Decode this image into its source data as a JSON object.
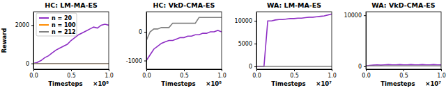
{
  "chart_data": [
    {
      "type": "line",
      "title": "HC: LM-MA-ES",
      "xlabel": "Timesteps",
      "annotations": [
        "×10⁸"
      ],
      "ylabel": "Reward",
      "legend": "upper left",
      "x": [
        0,
        0.05,
        0.1,
        0.15,
        0.2,
        0.25,
        0.3,
        0.35,
        0.4,
        0.45,
        0.5,
        0.55,
        0.6,
        0.65,
        0.7,
        0.75,
        0.8,
        0.85,
        0.9,
        0.95,
        1
      ],
      "xlim": [
        0,
        1
      ],
      "xticks": [
        {
          "value": 0,
          "label": "0.0"
        },
        0.5,
        {
          "value": 1,
          "label": "1.0"
        }
      ],
      "ylim": [
        -300,
        2700
      ],
      "yticks": [
        0,
        2000
      ],
      "series": [
        {
          "name": "n = 20",
          "color": "#8e2ec4",
          "values": [
            0,
            50,
            150,
            300,
            400,
            550,
            700,
            800,
            900,
            1000,
            1200,
            1350,
            1500,
            1600,
            1700,
            1800,
            1900,
            1850,
            2000,
            2050,
            2000
          ]
        },
        {
          "name": "n = 100",
          "color": "#ff8c00",
          "values": [
            0,
            0,
            0,
            0,
            0,
            0,
            0,
            0,
            0,
            0,
            0,
            0,
            0,
            0,
            0,
            0,
            0,
            0,
            0,
            0,
            0
          ]
        },
        {
          "name": "n = 212",
          "color": "#808080",
          "values": [
            0,
            0,
            0,
            0,
            0,
            0,
            0,
            0,
            0,
            0,
            0,
            0,
            0,
            0,
            0,
            0,
            0,
            0,
            0,
            0,
            0
          ]
        }
      ]
    },
    {
      "type": "line",
      "title": "HC: VkD-CMA-ES",
      "xlabel": "Timesteps",
      "annotations": [
        "×10⁸"
      ],
      "x": [
        0,
        0.05,
        0.1,
        0.15,
        0.2,
        0.25,
        0.3,
        0.35,
        0.4,
        0.45,
        0.5,
        0.55,
        0.6,
        0.65,
        0.7,
        0.75,
        0.8,
        0.85,
        0.9,
        0.95,
        1
      ],
      "xlim": [
        0,
        1
      ],
      "xticks": [
        {
          "value": 0,
          "label": "0.0"
        },
        0.5,
        {
          "value": 1,
          "label": "1.0"
        }
      ],
      "ylim": [
        -1300,
        700
      ],
      "yticks": [
        -1000,
        0
      ],
      "series": [
        {
          "name": "n = 20",
          "color": "#8e2ec4",
          "values": [
            -1000,
            -800,
            -600,
            -500,
            -400,
            -350,
            -300,
            -300,
            -250,
            -200,
            -200,
            -150,
            -150,
            -100,
            -100,
            -50,
            -50,
            0,
            0,
            50,
            0
          ]
        },
        {
          "name": "n = 212",
          "color": "#808080",
          "values": [
            -300,
            0,
            100,
            100,
            150,
            150,
            150,
            300,
            300,
            300,
            300,
            300,
            300,
            300,
            500,
            500,
            500,
            500,
            500,
            500,
            500
          ]
        }
      ]
    },
    {
      "type": "line",
      "title": "WA: LM-MA-ES",
      "xlabel": "Timesteps",
      "annotations": [
        "×10⁷"
      ],
      "x": [
        0,
        0.05,
        0.1,
        0.15,
        0.2,
        0.25,
        0.3,
        0.35,
        0.4,
        0.45,
        0.5,
        0.55,
        0.6,
        0.65,
        0.7,
        0.75,
        0.8,
        0.85,
        0.9,
        0.95,
        1
      ],
      "xlim": [
        0,
        1
      ],
      "xticks": [
        {
          "value": 0,
          "label": "0.0"
        },
        0.5,
        {
          "value": 1,
          "label": "1.0"
        }
      ],
      "ylim": [
        -600,
        12000
      ],
      "yticks": [
        0,
        5000,
        10000
      ],
      "series": [
        {
          "name": "n = 20",
          "color": "#8e2ec4",
          "values": [
            0,
            0,
            0,
            10000,
            10000,
            10200,
            10300,
            10300,
            10400,
            10500,
            10500,
            10600,
            10600,
            10700,
            10800,
            10800,
            10900,
            11000,
            11100,
            11300,
            11500
          ]
        },
        {
          "name": "n = 212",
          "color": "#808080",
          "values": [
            0,
            0,
            0,
            0,
            0,
            0,
            0,
            0,
            0,
            0,
            0,
            0,
            0,
            0,
            0,
            0,
            0,
            0,
            0,
            0,
            0
          ]
        }
      ]
    },
    {
      "type": "line",
      "title": "WA: VkD-CMA-ES",
      "xlabel": "Timesteps",
      "annotations": [
        "×10⁷"
      ],
      "x": [
        0,
        0.05,
        0.1,
        0.15,
        0.2,
        0.25,
        0.3,
        0.35,
        0.4,
        0.45,
        0.5,
        0.55,
        0.6,
        0.65,
        0.7,
        0.75,
        0.8,
        0.85,
        0.9,
        0.95,
        1
      ],
      "xlim": [
        0,
        1
      ],
      "xticks": [
        {
          "value": 0,
          "label": "0.0"
        },
        0.5,
        {
          "value": 1,
          "label": "1.0"
        }
      ],
      "ylim": [
        -550,
        10700
      ],
      "yticks": [
        0,
        10000
      ],
      "series": [
        {
          "name": "n = 20",
          "color": "#8e2ec4",
          "values": [
            100,
            200,
            250,
            300,
            250,
            300,
            350,
            300,
            300,
            350,
            300,
            300,
            350,
            300,
            300,
            350,
            300,
            300,
            350,
            300,
            300
          ]
        },
        {
          "name": "n = 212",
          "color": "#808080",
          "values": [
            50,
            100,
            100,
            100,
            100,
            100,
            100,
            100,
            100,
            100,
            100,
            100,
            100,
            100,
            100,
            100,
            100,
            100,
            100,
            100,
            100
          ]
        }
      ]
    }
  ]
}
